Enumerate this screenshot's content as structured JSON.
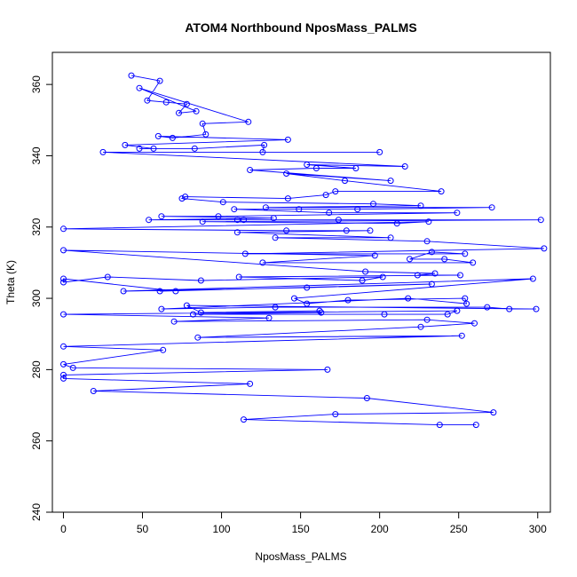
{
  "colors": {
    "series": "#0000ff",
    "axis": "#000000",
    "background": "#ffffff"
  },
  "chart_data": {
    "type": "line",
    "title": "ATOM4 Northbound NposMass_PALMS",
    "xlabel": "NposMass_PALMS",
    "ylabel": "Theta (K)",
    "xlim": [
      -7,
      308
    ],
    "ylim": [
      240,
      369
    ],
    "xticks": [
      0,
      50,
      100,
      150,
      200,
      250,
      300
    ],
    "yticks": [
      240,
      260,
      280,
      300,
      320,
      340,
      360
    ],
    "grid": false,
    "markers": "open-circle",
    "series": [
      {
        "points": [
          [
            43,
            362.5
          ],
          [
            61,
            361
          ],
          [
            53,
            355.5
          ],
          [
            65,
            355
          ],
          [
            78,
            354.5
          ],
          [
            73,
            352
          ],
          [
            84,
            352.5
          ],
          [
            48,
            359
          ],
          [
            117,
            349.5
          ],
          [
            88,
            349
          ],
          [
            90,
            346
          ],
          [
            69,
            345
          ],
          [
            60,
            345.5
          ],
          [
            142,
            344.5
          ],
          [
            39,
            343
          ],
          [
            57,
            342
          ],
          [
            48,
            342
          ],
          [
            83,
            342
          ],
          [
            127,
            343
          ],
          [
            126,
            341
          ],
          [
            200,
            341
          ],
          [
            25,
            341
          ],
          [
            216,
            337
          ],
          [
            154,
            337.5
          ],
          [
            185,
            336.5
          ],
          [
            160,
            336.5
          ],
          [
            118,
            336
          ],
          [
            207,
            333
          ],
          [
            141,
            335
          ],
          [
            178,
            333
          ],
          [
            239,
            330
          ],
          [
            172,
            330
          ],
          [
            166,
            329
          ],
          [
            142,
            328
          ],
          [
            77,
            328.5
          ],
          [
            75,
            328
          ],
          [
            101,
            327
          ],
          [
            196,
            326.5
          ],
          [
            226,
            326
          ],
          [
            128,
            325.5
          ],
          [
            271,
            325.5
          ],
          [
            186,
            325
          ],
          [
            149,
            325
          ],
          [
            108,
            325
          ],
          [
            168,
            324
          ],
          [
            249,
            324
          ],
          [
            98,
            323
          ],
          [
            62,
            323
          ],
          [
            133,
            322.5
          ],
          [
            54,
            322
          ],
          [
            114,
            322
          ],
          [
            110,
            322
          ],
          [
            174,
            322
          ],
          [
            302,
            322
          ],
          [
            88,
            321.5
          ],
          [
            211,
            321
          ],
          [
            231,
            321.5
          ],
          [
            0,
            319.5
          ],
          [
            141,
            319
          ],
          [
            179,
            319
          ],
          [
            194,
            319
          ],
          [
            110,
            318.5
          ],
          [
            207,
            317
          ],
          [
            134,
            317
          ],
          [
            230,
            316
          ],
          [
            304,
            314
          ],
          [
            115,
            312.5
          ],
          [
            254,
            312.5
          ],
          [
            233,
            313
          ],
          [
            219,
            311
          ],
          [
            241,
            311
          ],
          [
            259,
            310
          ],
          [
            126,
            310
          ],
          [
            197,
            312
          ],
          [
            0,
            313.5
          ],
          [
            191,
            307.5
          ],
          [
            235,
            307
          ],
          [
            224,
            306.5
          ],
          [
            251,
            306.5
          ],
          [
            111,
            306
          ],
          [
            189,
            305
          ],
          [
            202,
            306
          ],
          [
            87,
            305
          ],
          [
            28,
            306
          ],
          [
            0,
            304.5
          ],
          [
            0,
            305.5
          ],
          [
            71,
            302
          ],
          [
            61,
            302
          ],
          [
            233,
            304
          ],
          [
            154,
            303
          ],
          [
            38,
            302
          ],
          [
            297,
            305.5
          ],
          [
            146,
            300
          ],
          [
            154,
            298.5
          ],
          [
            180,
            299.5
          ],
          [
            254,
            300
          ],
          [
            255,
            298.5
          ],
          [
            218,
            300
          ],
          [
            62,
            297
          ],
          [
            134,
            297.5
          ],
          [
            268,
            297.5
          ],
          [
            282,
            297
          ],
          [
            299,
            297
          ],
          [
            78,
            298
          ],
          [
            87,
            296
          ],
          [
            162,
            296.5
          ],
          [
            163,
            296
          ],
          [
            82,
            295.5
          ],
          [
            203,
            295.5
          ],
          [
            243,
            295.5
          ],
          [
            249,
            296.5
          ],
          [
            0,
            295.5
          ],
          [
            130,
            294.5
          ],
          [
            70,
            293.5
          ],
          [
            230,
            294
          ],
          [
            260,
            293
          ],
          [
            226,
            292
          ],
          [
            85,
            289
          ],
          [
            252,
            289.5
          ],
          [
            0,
            286.5
          ],
          [
            63,
            285.5
          ],
          [
            0,
            281.5
          ],
          [
            6,
            280.5
          ],
          [
            167,
            280
          ],
          [
            0,
            278.5
          ],
          [
            0,
            277.5
          ],
          [
            118,
            276
          ],
          [
            19,
            274
          ],
          [
            192,
            272
          ],
          [
            272,
            268
          ],
          [
            172,
            267.5
          ],
          [
            114,
            266
          ],
          [
            238,
            264.5
          ],
          [
            261,
            264.5
          ]
        ]
      }
    ]
  }
}
